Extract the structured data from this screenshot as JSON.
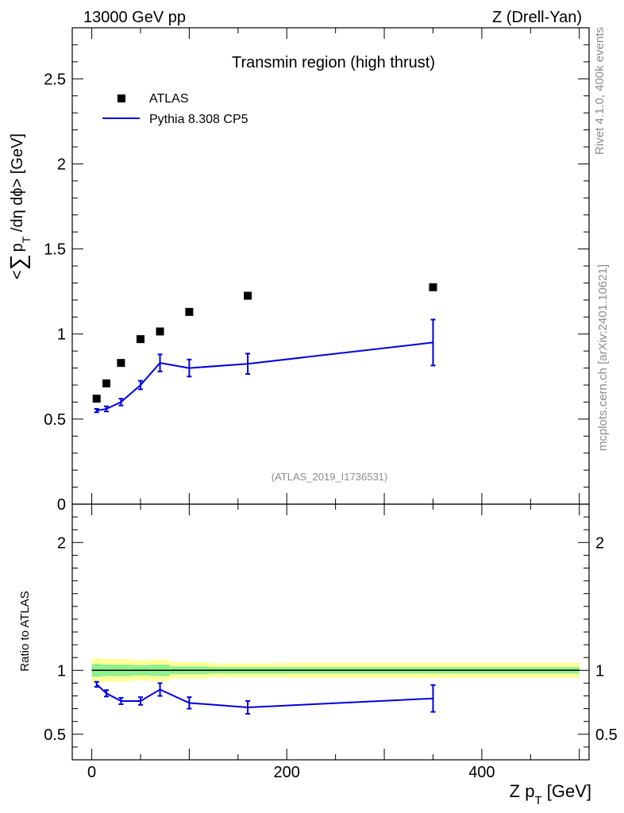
{
  "header": {
    "energy": "13000 GeV pp",
    "process": "Z (Drell-Yan)"
  },
  "side_text": {
    "rivet": "Rivet 4.1.0,  400k events",
    "mcplots": "mcplots.cern.ch [arXiv:2401.10621]"
  },
  "colors": {
    "mc": "#0000dd",
    "data": "#000000",
    "band_inner": "#8ef08e",
    "band_outer": "#ffff99"
  },
  "chart_data": [
    {
      "type": "scatter",
      "title": "Transmin region (high thrust)",
      "analysis_label": "(ATLAS_2019_I1736531)",
      "ylabel_parts": {
        "open": "<",
        "sum": "∑",
        "p": "p",
        "sub_T": "T",
        "rest": " /dη dϕ> [GeV]"
      },
      "xlim": [
        -20,
        510
      ],
      "ylim": [
        0,
        2.8
      ],
      "yticks": [
        0,
        0.5,
        1,
        1.5,
        2,
        2.5
      ],
      "ytick_labels": [
        "0",
        "0.5",
        "1",
        "1.5",
        "2",
        "2.5"
      ],
      "legend": {
        "position": "top-left",
        "data_label": "ATLAS",
        "mc_label": "Pythia 8.308 CP5"
      },
      "series": [
        {
          "name": "ATLAS",
          "style": "markers",
          "x": [
            5,
            15,
            30,
            50,
            70,
            100,
            160,
            350
          ],
          "y": [
            0.62,
            0.71,
            0.83,
            0.97,
            1.015,
            1.13,
            1.225,
            1.275
          ]
        },
        {
          "name": "Pythia 8.308 CP5",
          "style": "line-errorbars",
          "x": [
            5,
            15,
            30,
            50,
            70,
            100,
            160,
            350
          ],
          "y": [
            0.55,
            0.56,
            0.6,
            0.7,
            0.83,
            0.8,
            0.825,
            0.95
          ],
          "err": [
            0.01,
            0.015,
            0.02,
            0.025,
            0.05,
            0.05,
            0.06,
            0.135
          ]
        }
      ]
    },
    {
      "type": "line",
      "ylabel": "Ratio to ATLAS",
      "xlabel_parts": {
        "z": "Z p",
        "sub_T": "T",
        "rest": " [GeV]"
      },
      "xlim": [
        -20,
        510
      ],
      "ylim": [
        0.3,
        2.3
      ],
      "xticks": [
        0,
        200,
        400
      ],
      "xtick_labels": [
        "0",
        "200",
        "400"
      ],
      "yticks": [
        0.5,
        1,
        2
      ],
      "ytick_labels": [
        "0.5",
        "1",
        "2"
      ],
      "bands": {
        "edges": [
          0,
          10,
          20,
          40,
          60,
          80,
          120,
          200,
          500
        ],
        "inner": [
          0.05,
          0.045,
          0.045,
          0.04,
          0.045,
          0.03,
          0.025,
          0.025
        ],
        "outer": [
          0.095,
          0.09,
          0.09,
          0.08,
          0.085,
          0.065,
          0.055,
          0.06
        ]
      },
      "series": [
        {
          "name": "Pythia 8.308 CP5 / ATLAS",
          "x": [
            5,
            15,
            30,
            50,
            70,
            100,
            160,
            350
          ],
          "y": [
            0.89,
            0.82,
            0.76,
            0.76,
            0.85,
            0.745,
            0.71,
            0.78
          ],
          "err": [
            0.02,
            0.025,
            0.025,
            0.03,
            0.05,
            0.045,
            0.05,
            0.105
          ]
        }
      ]
    }
  ]
}
